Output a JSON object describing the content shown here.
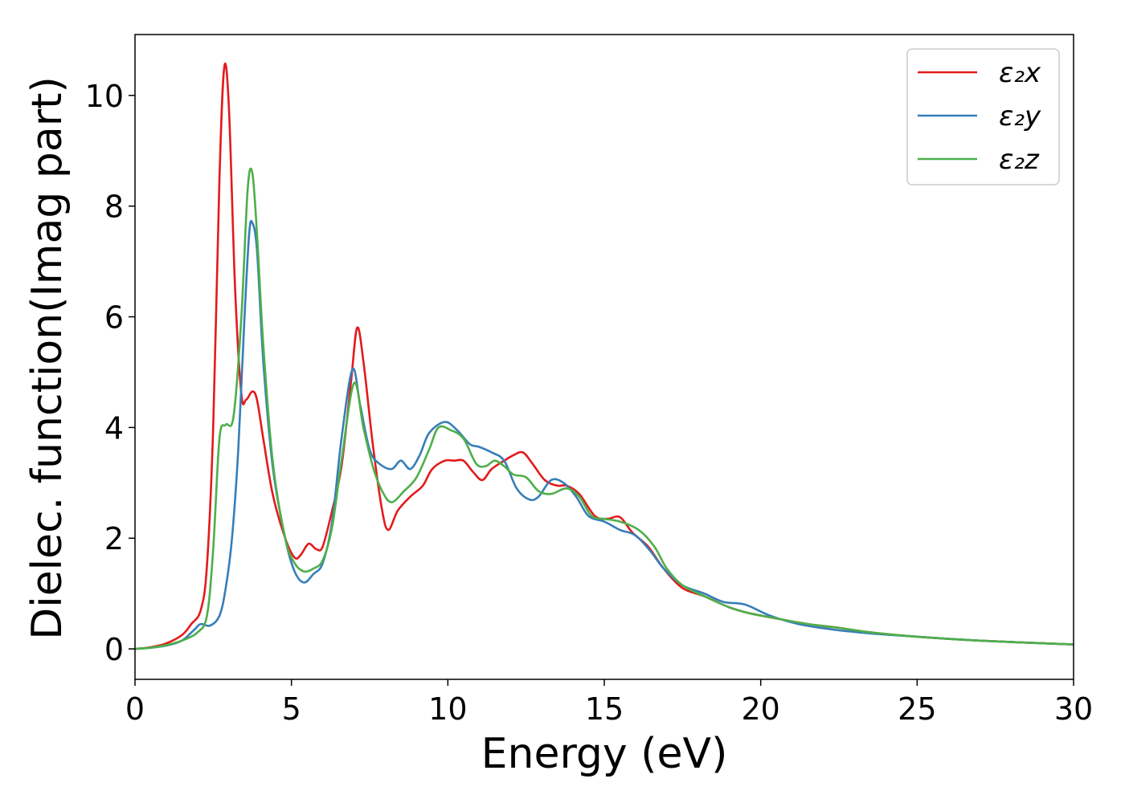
{
  "chart_data": {
    "type": "line",
    "xlabel": "Energy (eV)",
    "ylabel": "Dielec. function(Imag part)",
    "xlim": [
      0,
      30
    ],
    "ylim": [
      -0.55,
      11.1
    ],
    "xticks": [
      0,
      5,
      10,
      15,
      20,
      25,
      30
    ],
    "xtick_labels": [
      "0",
      "5",
      "10",
      "15",
      "20",
      "25",
      "30"
    ],
    "yticks": [
      0,
      2,
      4,
      6,
      8,
      10
    ],
    "ytick_labels": [
      "0",
      "2",
      "4",
      "6",
      "8",
      "10"
    ],
    "grid": false,
    "legend_position": "top-right",
    "series": [
      {
        "name": "ε₂x",
        "color": "#e41a1c",
        "points": [
          [
            0,
            0
          ],
          [
            0.5,
            0.03
          ],
          [
            1.0,
            0.1
          ],
          [
            1.5,
            0.25
          ],
          [
            1.8,
            0.45
          ],
          [
            2.1,
            0.7
          ],
          [
            2.3,
            1.5
          ],
          [
            2.5,
            4.0
          ],
          [
            2.7,
            8.5
          ],
          [
            2.85,
            10.5
          ],
          [
            3.0,
            9.8
          ],
          [
            3.2,
            6.5
          ],
          [
            3.4,
            4.6
          ],
          [
            3.55,
            4.5
          ],
          [
            3.75,
            4.65
          ],
          [
            3.9,
            4.5
          ],
          [
            4.1,
            3.8
          ],
          [
            4.4,
            2.8
          ],
          [
            4.8,
            2.0
          ],
          [
            5.1,
            1.65
          ],
          [
            5.3,
            1.7
          ],
          [
            5.55,
            1.9
          ],
          [
            5.8,
            1.8
          ],
          [
            6.0,
            1.85
          ],
          [
            6.3,
            2.5
          ],
          [
            6.6,
            3.3
          ],
          [
            6.9,
            4.8
          ],
          [
            7.1,
            5.8
          ],
          [
            7.3,
            5.2
          ],
          [
            7.6,
            3.7
          ],
          [
            7.9,
            2.5
          ],
          [
            8.1,
            2.15
          ],
          [
            8.4,
            2.5
          ],
          [
            8.8,
            2.75
          ],
          [
            9.2,
            2.95
          ],
          [
            9.5,
            3.25
          ],
          [
            9.9,
            3.4
          ],
          [
            10.2,
            3.4
          ],
          [
            10.5,
            3.4
          ],
          [
            10.8,
            3.2
          ],
          [
            11.1,
            3.05
          ],
          [
            11.4,
            3.25
          ],
          [
            11.8,
            3.4
          ],
          [
            12.1,
            3.5
          ],
          [
            12.4,
            3.55
          ],
          [
            12.7,
            3.35
          ],
          [
            13.1,
            3.05
          ],
          [
            13.5,
            2.95
          ],
          [
            13.8,
            2.95
          ],
          [
            14.2,
            2.8
          ],
          [
            14.7,
            2.4
          ],
          [
            15.1,
            2.35
          ],
          [
            15.5,
            2.38
          ],
          [
            15.9,
            2.1
          ],
          [
            16.4,
            1.85
          ],
          [
            16.9,
            1.45
          ],
          [
            17.5,
            1.1
          ],
          [
            18.2,
            0.95
          ],
          [
            19.0,
            0.75
          ],
          [
            19.6,
            0.65
          ],
          [
            20.5,
            0.55
          ],
          [
            21.5,
            0.45
          ],
          [
            22.5,
            0.38
          ],
          [
            23.5,
            0.3
          ],
          [
            25.0,
            0.22
          ],
          [
            27.0,
            0.15
          ],
          [
            30.0,
            0.08
          ]
        ]
      },
      {
        "name": "ε₂y",
        "color": "#377eb8",
        "points": [
          [
            0,
            0
          ],
          [
            0.5,
            0.02
          ],
          [
            1.0,
            0.06
          ],
          [
            1.5,
            0.15
          ],
          [
            1.9,
            0.35
          ],
          [
            2.1,
            0.45
          ],
          [
            2.4,
            0.42
          ],
          [
            2.7,
            0.6
          ],
          [
            2.9,
            1.1
          ],
          [
            3.1,
            2.0
          ],
          [
            3.3,
            3.6
          ],
          [
            3.5,
            6.0
          ],
          [
            3.65,
            7.5
          ],
          [
            3.75,
            7.7
          ],
          [
            3.9,
            7.2
          ],
          [
            4.1,
            5.2
          ],
          [
            4.4,
            3.3
          ],
          [
            4.8,
            2.0
          ],
          [
            5.1,
            1.4
          ],
          [
            5.4,
            1.2
          ],
          [
            5.7,
            1.35
          ],
          [
            6.0,
            1.55
          ],
          [
            6.3,
            2.3
          ],
          [
            6.6,
            3.8
          ],
          [
            6.95,
            5.05
          ],
          [
            7.2,
            4.4
          ],
          [
            7.5,
            3.6
          ],
          [
            7.8,
            3.35
          ],
          [
            8.2,
            3.25
          ],
          [
            8.5,
            3.4
          ],
          [
            8.8,
            3.25
          ],
          [
            9.1,
            3.5
          ],
          [
            9.4,
            3.9
          ],
          [
            9.9,
            4.1
          ],
          [
            10.3,
            3.95
          ],
          [
            10.7,
            3.7
          ],
          [
            11.0,
            3.65
          ],
          [
            11.4,
            3.55
          ],
          [
            11.8,
            3.4
          ],
          [
            12.2,
            2.9
          ],
          [
            12.6,
            2.7
          ],
          [
            12.9,
            2.75
          ],
          [
            13.3,
            3.05
          ],
          [
            13.7,
            3.0
          ],
          [
            14.1,
            2.75
          ],
          [
            14.5,
            2.4
          ],
          [
            15.0,
            2.3
          ],
          [
            15.5,
            2.15
          ],
          [
            16.0,
            2.05
          ],
          [
            16.5,
            1.75
          ],
          [
            16.9,
            1.45
          ],
          [
            17.5,
            1.15
          ],
          [
            18.2,
            1.0
          ],
          [
            18.8,
            0.85
          ],
          [
            19.5,
            0.8
          ],
          [
            20.3,
            0.6
          ],
          [
            21.2,
            0.45
          ],
          [
            22.3,
            0.35
          ],
          [
            23.5,
            0.28
          ],
          [
            25.0,
            0.22
          ],
          [
            27.0,
            0.15
          ],
          [
            30.0,
            0.08
          ]
        ]
      },
      {
        "name": "ε₂z",
        "color": "#4daf4a",
        "points": [
          [
            0,
            0
          ],
          [
            0.5,
            0.02
          ],
          [
            1.0,
            0.07
          ],
          [
            1.5,
            0.15
          ],
          [
            2.0,
            0.3
          ],
          [
            2.3,
            0.6
          ],
          [
            2.5,
            1.8
          ],
          [
            2.7,
            3.8
          ],
          [
            2.9,
            4.05
          ],
          [
            3.15,
            4.2
          ],
          [
            3.4,
            6.0
          ],
          [
            3.6,
            8.3
          ],
          [
            3.75,
            8.6
          ],
          [
            3.9,
            7.5
          ],
          [
            4.1,
            5.5
          ],
          [
            4.4,
            3.4
          ],
          [
            4.8,
            2.0
          ],
          [
            5.1,
            1.55
          ],
          [
            5.4,
            1.4
          ],
          [
            5.7,
            1.45
          ],
          [
            6.0,
            1.6
          ],
          [
            6.3,
            2.2
          ],
          [
            6.6,
            3.4
          ],
          [
            7.0,
            4.8
          ],
          [
            7.3,
            4.0
          ],
          [
            7.6,
            3.3
          ],
          [
            7.9,
            2.85
          ],
          [
            8.2,
            2.65
          ],
          [
            8.6,
            2.85
          ],
          [
            9.0,
            3.1
          ],
          [
            9.4,
            3.6
          ],
          [
            9.7,
            4.0
          ],
          [
            10.1,
            3.95
          ],
          [
            10.5,
            3.8
          ],
          [
            10.9,
            3.35
          ],
          [
            11.2,
            3.3
          ],
          [
            11.5,
            3.4
          ],
          [
            11.8,
            3.3
          ],
          [
            12.1,
            3.15
          ],
          [
            12.5,
            3.1
          ],
          [
            12.9,
            2.85
          ],
          [
            13.3,
            2.8
          ],
          [
            13.8,
            2.9
          ],
          [
            14.2,
            2.75
          ],
          [
            14.6,
            2.4
          ],
          [
            15.0,
            2.35
          ],
          [
            15.5,
            2.3
          ],
          [
            16.1,
            2.15
          ],
          [
            16.6,
            1.85
          ],
          [
            17.0,
            1.45
          ],
          [
            17.5,
            1.15
          ],
          [
            18.2,
            0.95
          ],
          [
            19.0,
            0.75
          ],
          [
            19.6,
            0.65
          ],
          [
            20.5,
            0.55
          ],
          [
            21.5,
            0.45
          ],
          [
            22.5,
            0.38
          ],
          [
            23.5,
            0.3
          ],
          [
            25.0,
            0.22
          ],
          [
            27.0,
            0.15
          ],
          [
            30.0,
            0.08
          ]
        ]
      }
    ]
  }
}
